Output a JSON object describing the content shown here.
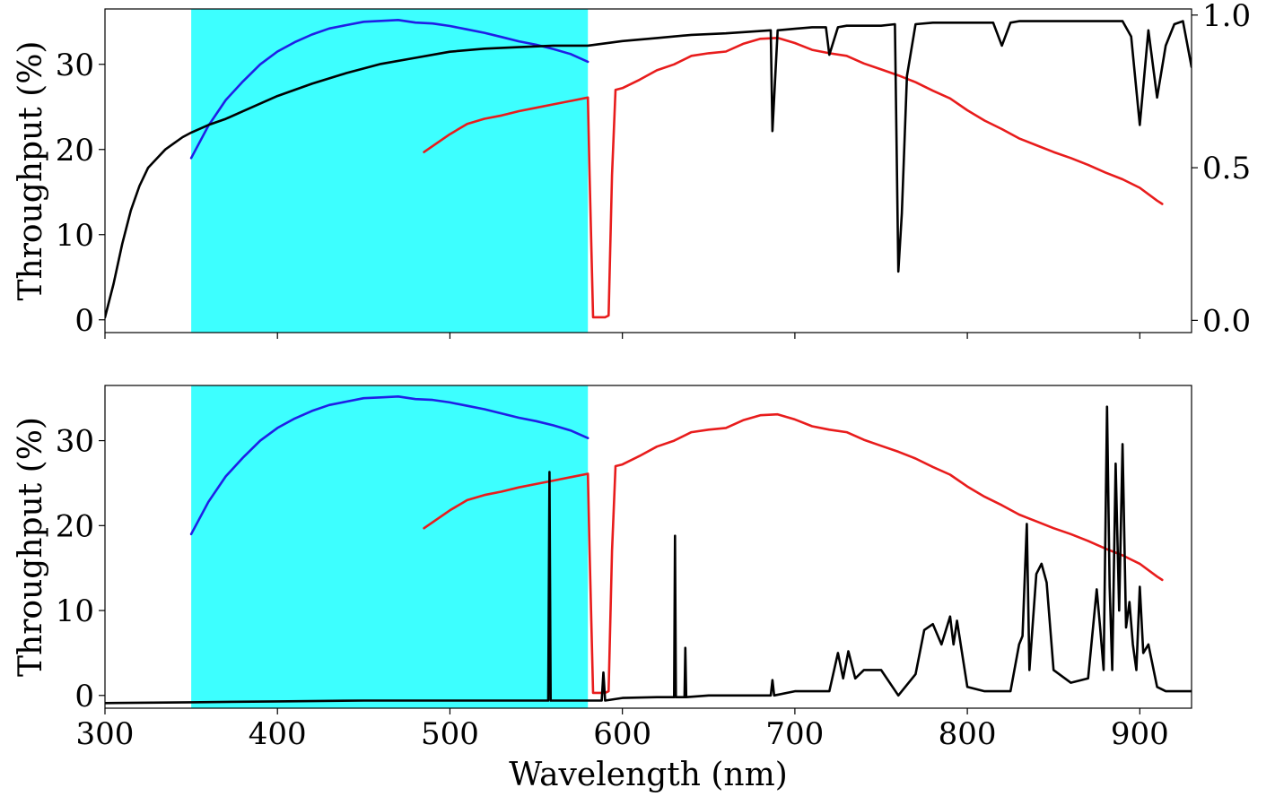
{
  "chart_data": [
    {
      "panel": "top",
      "type": "line",
      "xlabel": "",
      "ylabel": "Throughput (%)",
      "y2label": "",
      "xlim": [
        300,
        930
      ],
      "ylim": [
        -1.5,
        36.5
      ],
      "y2lim": [
        -0.04,
        1.02
      ],
      "xticks": [
        300,
        400,
        500,
        600,
        700,
        800,
        900
      ],
      "xtick_labels_visible": false,
      "yticks": [
        0,
        10,
        20,
        30
      ],
      "y2ticks": [
        0.0,
        0.5,
        1.0
      ],
      "y2tick_labels": [
        "0.0",
        "0.5",
        "1.0"
      ],
      "shaded_band": {
        "x": [
          350,
          580
        ],
        "color": "#3dffff"
      },
      "series": [
        {
          "color": "#1f1fe6",
          "axis": "left",
          "x": [
            350,
            360,
            370,
            380,
            390,
            400,
            410,
            420,
            430,
            440,
            450,
            460,
            470,
            480,
            490,
            500,
            510,
            520,
            530,
            540,
            550,
            560,
            570,
            580
          ],
          "y": [
            19.0,
            22.8,
            25.8,
            28.0,
            30.0,
            31.5,
            32.6,
            33.5,
            34.2,
            34.6,
            35.0,
            35.1,
            35.2,
            34.9,
            34.8,
            34.5,
            34.1,
            33.7,
            33.2,
            32.7,
            32.3,
            31.8,
            31.2,
            30.3
          ]
        },
        {
          "color": "#e81c1c",
          "axis": "left",
          "x": [
            485,
            500,
            510,
            520,
            530,
            540,
            550,
            560,
            570,
            580,
            581,
            583,
            590,
            592,
            594,
            596,
            600,
            610,
            620,
            630,
            640,
            650,
            660,
            670,
            680,
            690,
            700,
            710,
            720,
            730,
            740,
            750,
            760,
            770,
            780,
            790,
            800,
            810,
            820,
            830,
            840,
            850,
            860,
            870,
            880,
            890,
            900,
            910,
            913
          ],
          "y": [
            19.7,
            21.8,
            23.0,
            23.6,
            24.0,
            24.5,
            24.9,
            25.3,
            25.7,
            26.1,
            17.0,
            0.3,
            0.3,
            0.5,
            17.0,
            27.0,
            27.2,
            28.2,
            29.3,
            30.0,
            31.0,
            31.3,
            31.5,
            32.4,
            33.0,
            33.1,
            32.5,
            31.7,
            31.3,
            31.0,
            30.1,
            29.4,
            28.7,
            27.9,
            26.9,
            26.0,
            24.6,
            23.4,
            22.4,
            21.3,
            20.5,
            19.7,
            19.0,
            18.2,
            17.3,
            16.5,
            15.5,
            14.0,
            13.6
          ]
        },
        {
          "color": "#000000",
          "axis": "right",
          "x": [
            300,
            305,
            310,
            315,
            320,
            325,
            330,
            335,
            340,
            345,
            350,
            360,
            370,
            380,
            390,
            400,
            420,
            440,
            460,
            480,
            500,
            520,
            540,
            560,
            580,
            600,
            620,
            640,
            660,
            686,
            687,
            690,
            700,
            710,
            718,
            720,
            725,
            730,
            740,
            750,
            758,
            760,
            762,
            765,
            770,
            780,
            800,
            810,
            815,
            820,
            825,
            830,
            850,
            880,
            890,
            895,
            900,
            905,
            910,
            915,
            920,
            925,
            930
          ],
          "y": [
            0.01,
            0.12,
            0.25,
            0.36,
            0.44,
            0.5,
            0.53,
            0.56,
            0.58,
            0.6,
            0.615,
            0.64,
            0.66,
            0.685,
            0.71,
            0.735,
            0.775,
            0.81,
            0.84,
            0.86,
            0.88,
            0.89,
            0.895,
            0.9,
            0.9,
            0.915,
            0.925,
            0.935,
            0.94,
            0.95,
            0.62,
            0.95,
            0.955,
            0.96,
            0.96,
            0.87,
            0.96,
            0.965,
            0.965,
            0.965,
            0.97,
            0.16,
            0.35,
            0.8,
            0.97,
            0.975,
            0.975,
            0.975,
            0.975,
            0.9,
            0.975,
            0.98,
            0.98,
            0.98,
            0.98,
            0.93,
            0.64,
            0.95,
            0.73,
            0.9,
            0.97,
            0.98,
            0.83
          ]
        }
      ]
    },
    {
      "panel": "bottom",
      "type": "line",
      "xlabel": "Wavelength (nm)",
      "ylabel": "Throughput (%)",
      "xlim": [
        300,
        930
      ],
      "ylim": [
        -1.5,
        36.5
      ],
      "xticks": [
        300,
        400,
        500,
        600,
        700,
        800,
        900
      ],
      "xtick_labels": [
        "300",
        "400",
        "500",
        "600",
        "700",
        "800",
        "900"
      ],
      "yticks": [
        0,
        10,
        20,
        30
      ],
      "shaded_band": {
        "x": [
          350,
          580
        ],
        "color": "#3dffff"
      },
      "series": [
        {
          "color": "#1f1fe6",
          "x": [
            350,
            360,
            370,
            380,
            390,
            400,
            410,
            420,
            430,
            440,
            450,
            460,
            470,
            480,
            490,
            500,
            510,
            520,
            530,
            540,
            550,
            560,
            570,
            580
          ],
          "y": [
            19.0,
            22.8,
            25.8,
            28.0,
            30.0,
            31.5,
            32.6,
            33.5,
            34.2,
            34.6,
            35.0,
            35.1,
            35.2,
            34.9,
            34.8,
            34.5,
            34.1,
            33.7,
            33.2,
            32.7,
            32.3,
            31.8,
            31.2,
            30.3
          ]
        },
        {
          "color": "#e81c1c",
          "x": [
            485,
            500,
            510,
            520,
            530,
            540,
            550,
            560,
            570,
            580,
            581,
            583,
            590,
            592,
            594,
            596,
            600,
            610,
            620,
            630,
            640,
            650,
            660,
            670,
            680,
            690,
            700,
            710,
            720,
            730,
            740,
            750,
            760,
            770,
            780,
            790,
            800,
            810,
            820,
            830,
            840,
            850,
            860,
            870,
            880,
            890,
            900,
            910,
            913
          ],
          "y": [
            19.7,
            21.8,
            23.0,
            23.6,
            24.0,
            24.5,
            24.9,
            25.3,
            25.7,
            26.1,
            17.0,
            0.3,
            0.3,
            0.5,
            17.0,
            27.0,
            27.2,
            28.2,
            29.3,
            30.0,
            31.0,
            31.3,
            31.5,
            32.4,
            33.0,
            33.1,
            32.5,
            31.7,
            31.3,
            31.0,
            30.1,
            29.4,
            28.7,
            27.9,
            26.9,
            26.0,
            24.6,
            23.4,
            22.4,
            21.3,
            20.5,
            19.7,
            19.0,
            18.2,
            17.3,
            16.5,
            15.5,
            14.0,
            13.6
          ]
        },
        {
          "color": "#000000",
          "x": [
            300,
            350,
            400,
            450,
            500,
            550,
            557,
            557.7,
            558.4,
            565,
            580,
            588,
            589,
            590,
            600,
            620,
            630,
            630.5,
            631,
            636,
            636.5,
            637,
            650,
            660,
            686,
            687,
            688,
            700,
            720,
            725,
            728,
            731,
            735,
            740,
            750,
            760,
            770,
            775,
            780,
            785,
            790,
            792,
            794,
            800,
            810,
            825,
            830,
            832,
            834.5,
            836,
            840,
            843,
            846,
            850,
            860,
            870,
            875,
            877,
            879,
            881,
            882.5,
            884,
            886,
            888,
            890,
            892,
            894,
            896,
            898,
            900,
            902,
            905,
            910,
            915,
            920,
            925,
            930
          ],
          "y": [
            -0.9,
            -0.8,
            -0.7,
            -0.6,
            -0.6,
            -0.6,
            -0.6,
            26.3,
            -0.6,
            -0.6,
            -0.6,
            -0.6,
            2.7,
            -0.6,
            -0.3,
            -0.2,
            -0.2,
            18.8,
            -0.2,
            -0.2,
            5.6,
            -0.2,
            0.0,
            0.0,
            0.0,
            1.8,
            0.0,
            0.5,
            0.5,
            5.0,
            2.0,
            5.2,
            2.0,
            3.0,
            3.0,
            0.0,
            2.5,
            7.7,
            8.4,
            6.0,
            9.3,
            6.0,
            8.8,
            1.0,
            0.5,
            0.5,
            6.0,
            7.0,
            20.2,
            3.0,
            14.3,
            15.5,
            13.3,
            3.0,
            1.5,
            2.0,
            12.5,
            8.0,
            3.0,
            34.0,
            12.8,
            3.0,
            27.3,
            10.0,
            29.6,
            8.0,
            11.0,
            6.0,
            3.0,
            12.8,
            5.0,
            6.0,
            1.0,
            0.5,
            0.5,
            0.5,
            0.5
          ]
        }
      ]
    }
  ]
}
